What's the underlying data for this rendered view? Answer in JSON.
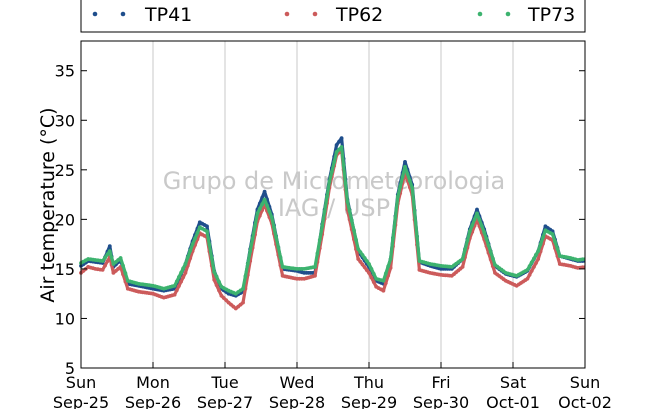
{
  "chart_data": {
    "type": "scatter",
    "title": "",
    "xlabel": "",
    "ylabel": "Air temperature (°C)",
    "ylim": [
      5,
      38
    ],
    "yticks": [
      5,
      10,
      15,
      20,
      25,
      30,
      35
    ],
    "grid": "vertical",
    "legend_position": "top",
    "watermark": [
      "Grupo de Micrometeorologia",
      "IAG / USP"
    ],
    "x_ticks": [
      {
        "day": "Sun",
        "date": "Sep-25"
      },
      {
        "day": "Mon",
        "date": "Sep-26"
      },
      {
        "day": "Tue",
        "date": "Sep-27"
      },
      {
        "day": "Wed",
        "date": "Sep-28"
      },
      {
        "day": "Thu",
        "date": "Sep-29"
      },
      {
        "day": "Fri",
        "date": "Sep-30"
      },
      {
        "day": "Sat",
        "date": "Oct-01"
      },
      {
        "day": "Sun",
        "date": "Oct-02"
      }
    ],
    "series": [
      {
        "name": "TP41",
        "color": "#1f4e8c",
        "points": [
          [
            0.0,
            15.3
          ],
          [
            0.1,
            15.8
          ],
          [
            0.2,
            15.7
          ],
          [
            0.3,
            15.6
          ],
          [
            0.4,
            17.3
          ],
          [
            0.45,
            15.2
          ],
          [
            0.55,
            15.9
          ],
          [
            0.65,
            13.5
          ],
          [
            0.8,
            13.3
          ],
          [
            1.0,
            13.0
          ],
          [
            1.15,
            12.8
          ],
          [
            1.3,
            13.0
          ],
          [
            1.45,
            15.5
          ],
          [
            1.55,
            17.8
          ],
          [
            1.65,
            19.7
          ],
          [
            1.75,
            19.3
          ],
          [
            1.85,
            14.8
          ],
          [
            1.95,
            13.0
          ],
          [
            2.05,
            12.5
          ],
          [
            2.15,
            12.3
          ],
          [
            2.25,
            12.7
          ],
          [
            2.35,
            17.0
          ],
          [
            2.45,
            21.0
          ],
          [
            2.55,
            22.8
          ],
          [
            2.65,
            20.5
          ],
          [
            2.8,
            15.0
          ],
          [
            3.0,
            14.8
          ],
          [
            3.1,
            14.6
          ],
          [
            3.25,
            14.6
          ],
          [
            3.35,
            19.5
          ],
          [
            3.45,
            24.0
          ],
          [
            3.55,
            27.5
          ],
          [
            3.62,
            28.2
          ],
          [
            3.7,
            22.0
          ],
          [
            3.85,
            16.8
          ],
          [
            4.0,
            15.2
          ],
          [
            4.1,
            13.8
          ],
          [
            4.2,
            13.5
          ],
          [
            4.3,
            16.0
          ],
          [
            4.4,
            22.5
          ],
          [
            4.5,
            25.8
          ],
          [
            4.6,
            23.5
          ],
          [
            4.7,
            15.7
          ],
          [
            4.85,
            15.3
          ],
          [
            5.0,
            15.0
          ],
          [
            5.15,
            15.0
          ],
          [
            5.3,
            16.0
          ],
          [
            5.4,
            19.0
          ],
          [
            5.5,
            21.0
          ],
          [
            5.6,
            19.0
          ],
          [
            5.75,
            15.3
          ],
          [
            5.9,
            14.5
          ],
          [
            6.05,
            14.2
          ],
          [
            6.2,
            14.8
          ],
          [
            6.35,
            16.8
          ],
          [
            6.45,
            19.3
          ],
          [
            6.55,
            18.8
          ],
          [
            6.65,
            16.3
          ],
          [
            6.8,
            16.0
          ],
          [
            6.9,
            15.8
          ],
          [
            7.0,
            15.8
          ]
        ]
      },
      {
        "name": "TP62",
        "color": "#cc5b5b",
        "points": [
          [
            0.0,
            14.6
          ],
          [
            0.1,
            15.2
          ],
          [
            0.2,
            15.0
          ],
          [
            0.3,
            14.9
          ],
          [
            0.4,
            16.2
          ],
          [
            0.45,
            14.6
          ],
          [
            0.55,
            15.2
          ],
          [
            0.65,
            13.0
          ],
          [
            0.8,
            12.7
          ],
          [
            1.0,
            12.5
          ],
          [
            1.15,
            12.1
          ],
          [
            1.3,
            12.4
          ],
          [
            1.45,
            14.6
          ],
          [
            1.55,
            16.8
          ],
          [
            1.65,
            18.6
          ],
          [
            1.75,
            18.2
          ],
          [
            1.85,
            13.9
          ],
          [
            1.95,
            12.3
          ],
          [
            2.05,
            11.6
          ],
          [
            2.15,
            11.0
          ],
          [
            2.25,
            11.6
          ],
          [
            2.35,
            15.8
          ],
          [
            2.45,
            19.8
          ],
          [
            2.55,
            21.5
          ],
          [
            2.65,
            19.6
          ],
          [
            2.8,
            14.3
          ],
          [
            3.0,
            14.0
          ],
          [
            3.1,
            14.0
          ],
          [
            3.25,
            14.3
          ],
          [
            3.35,
            18.5
          ],
          [
            3.45,
            23.2
          ],
          [
            3.55,
            26.5
          ],
          [
            3.62,
            27.0
          ],
          [
            3.7,
            21.0
          ],
          [
            3.85,
            16.0
          ],
          [
            4.0,
            14.6
          ],
          [
            4.1,
            13.2
          ],
          [
            4.2,
            12.8
          ],
          [
            4.3,
            15.1
          ],
          [
            4.4,
            21.6
          ],
          [
            4.5,
            24.7
          ],
          [
            4.6,
            22.5
          ],
          [
            4.7,
            14.9
          ],
          [
            4.85,
            14.6
          ],
          [
            5.0,
            14.4
          ],
          [
            5.15,
            14.3
          ],
          [
            5.3,
            15.2
          ],
          [
            5.4,
            18.1
          ],
          [
            5.5,
            20.0
          ],
          [
            5.6,
            18.0
          ],
          [
            5.75,
            14.6
          ],
          [
            5.9,
            13.8
          ],
          [
            6.05,
            13.3
          ],
          [
            6.2,
            14.0
          ],
          [
            6.35,
            16.0
          ],
          [
            6.45,
            18.3
          ],
          [
            6.55,
            17.9
          ],
          [
            6.65,
            15.5
          ],
          [
            6.8,
            15.3
          ],
          [
            6.9,
            15.1
          ],
          [
            7.0,
            15.2
          ]
        ]
      },
      {
        "name": "TP73",
        "color": "#3db36f",
        "points": [
          [
            0.0,
            15.6
          ],
          [
            0.1,
            16.0
          ],
          [
            0.2,
            15.9
          ],
          [
            0.3,
            15.8
          ],
          [
            0.4,
            16.8
          ],
          [
            0.45,
            15.5
          ],
          [
            0.55,
            16.1
          ],
          [
            0.65,
            13.8
          ],
          [
            0.8,
            13.5
          ],
          [
            1.0,
            13.3
          ],
          [
            1.15,
            13.0
          ],
          [
            1.3,
            13.3
          ],
          [
            1.45,
            15.5
          ],
          [
            1.55,
            17.5
          ],
          [
            1.65,
            19.2
          ],
          [
            1.75,
            18.8
          ],
          [
            1.85,
            14.7
          ],
          [
            1.95,
            13.2
          ],
          [
            2.05,
            12.8
          ],
          [
            2.15,
            12.5
          ],
          [
            2.25,
            13.0
          ],
          [
            2.35,
            16.8
          ],
          [
            2.45,
            20.6
          ],
          [
            2.55,
            22.0
          ],
          [
            2.65,
            20.2
          ],
          [
            2.8,
            15.2
          ],
          [
            3.0,
            15.0
          ],
          [
            3.1,
            15.0
          ],
          [
            3.25,
            15.2
          ],
          [
            3.35,
            19.3
          ],
          [
            3.45,
            23.8
          ],
          [
            3.55,
            26.8
          ],
          [
            3.62,
            27.3
          ],
          [
            3.7,
            21.8
          ],
          [
            3.85,
            17.0
          ],
          [
            4.0,
            15.5
          ],
          [
            4.1,
            14.0
          ],
          [
            4.2,
            13.8
          ],
          [
            4.3,
            16.0
          ],
          [
            4.4,
            22.3
          ],
          [
            4.5,
            25.3
          ],
          [
            4.6,
            23.2
          ],
          [
            4.7,
            15.8
          ],
          [
            4.85,
            15.5
          ],
          [
            5.0,
            15.3
          ],
          [
            5.15,
            15.2
          ],
          [
            5.3,
            16.0
          ],
          [
            5.4,
            18.8
          ],
          [
            5.5,
            20.6
          ],
          [
            5.6,
            18.7
          ],
          [
            5.75,
            15.4
          ],
          [
            5.9,
            14.6
          ],
          [
            6.05,
            14.3
          ],
          [
            6.2,
            14.9
          ],
          [
            6.35,
            16.8
          ],
          [
            6.45,
            18.9
          ],
          [
            6.55,
            18.5
          ],
          [
            6.65,
            16.3
          ],
          [
            6.8,
            16.1
          ],
          [
            6.9,
            15.9
          ],
          [
            7.0,
            16.0
          ]
        ]
      }
    ]
  }
}
